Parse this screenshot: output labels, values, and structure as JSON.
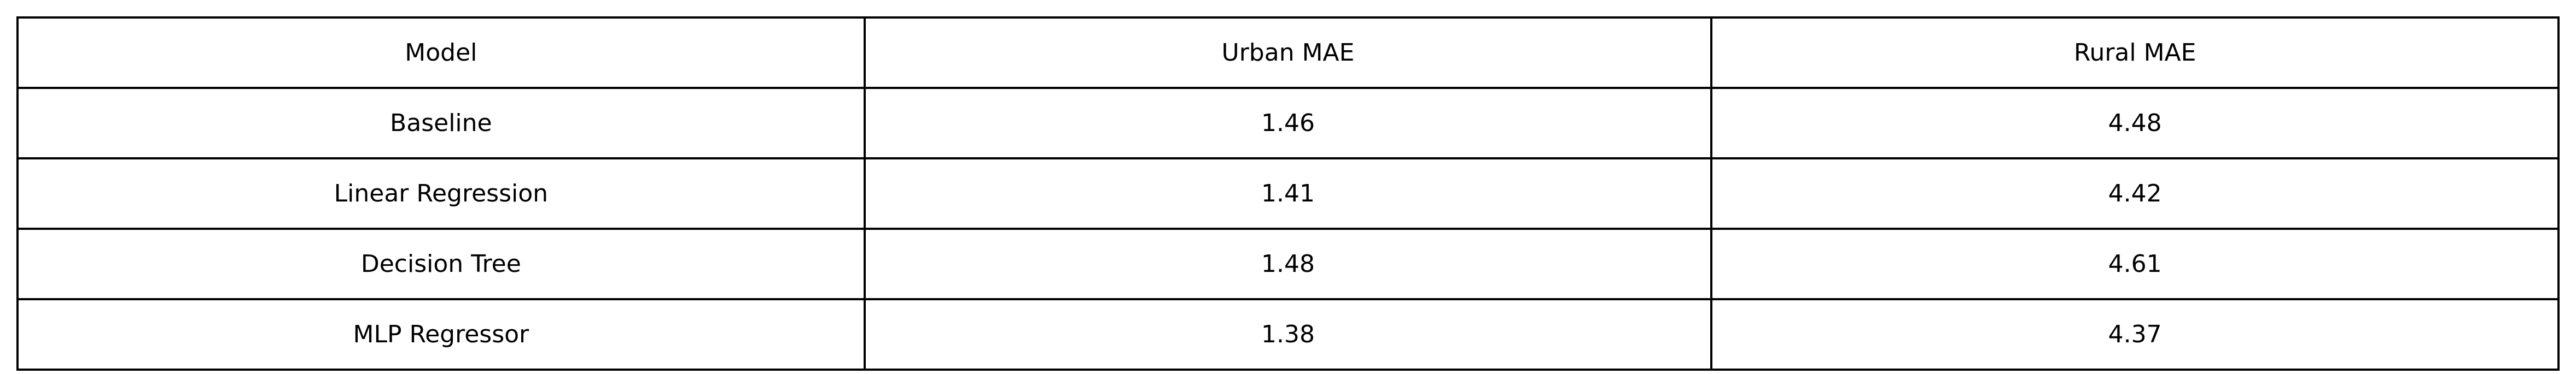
{
  "chart_data": {
    "type": "table",
    "columns": [
      "Model",
      "Urban MAE",
      "Rural MAE"
    ],
    "rows": [
      [
        "Baseline",
        "1.46",
        "4.48"
      ],
      [
        "Linear Regression",
        "1.41",
        "4.42"
      ],
      [
        "Decision Tree",
        "1.48",
        "4.61"
      ],
      [
        "MLP Regressor",
        "1.38",
        "4.37"
      ]
    ]
  },
  "colors": {
    "border": "#000000",
    "text": "#000000",
    "background": "#ffffff"
  }
}
